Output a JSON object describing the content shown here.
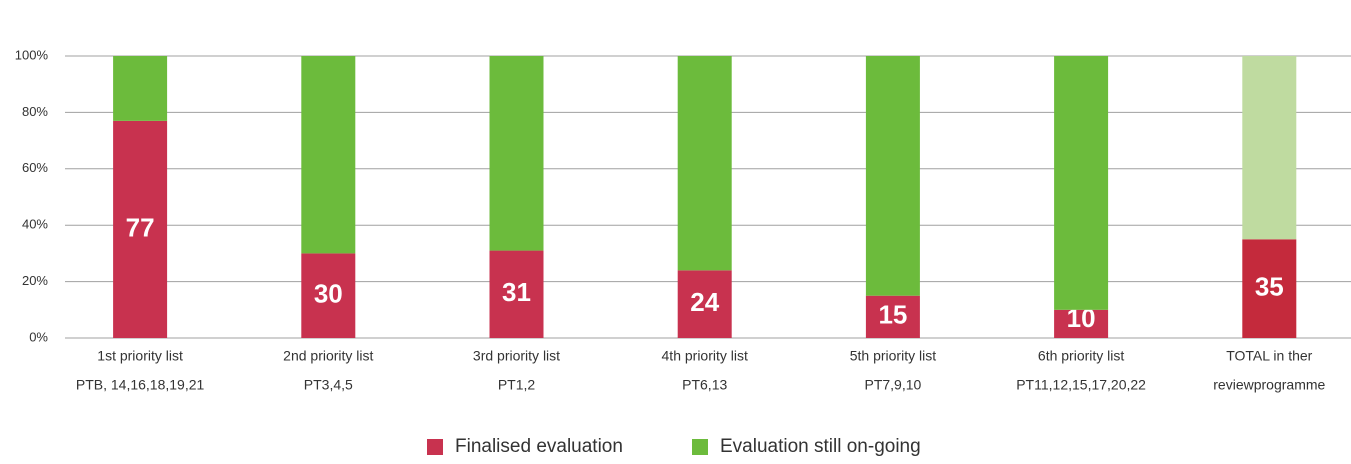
{
  "chart_data": {
    "type": "stacked_bar",
    "categories": [
      [
        "1st priority list",
        "PTB, 14,16,18,19,21"
      ],
      [
        "2nd priority list",
        "PT3,4,5"
      ],
      [
        "3rd priority list",
        "PT1,2"
      ],
      [
        "4th priority list",
        "PT6,13"
      ],
      [
        "5th priority list",
        "PT7,9,10"
      ],
      [
        "6th priority list",
        "PT11,12,15,17,20,22"
      ],
      [
        "TOTAL in ther",
        "reviewprogramme"
      ]
    ],
    "series": [
      {
        "name": "Finalised evaluation",
        "color": "#c8324f",
        "colors": [
          "#c8324f",
          "#c8324f",
          "#c8324f",
          "#c8324f",
          "#c8324f",
          "#c8324f",
          "#c42a3c"
        ],
        "values": [
          77,
          30,
          31,
          24,
          15,
          10,
          35
        ]
      },
      {
        "name": "Evaluation still on-going",
        "color": "#6cbb3c",
        "colors": [
          "#6cbb3c",
          "#6cbb3c",
          "#6cbb3c",
          "#6cbb3c",
          "#6cbb3c",
          "#6cbb3c",
          "#bfdba0"
        ],
        "values": [
          23,
          70,
          69,
          76,
          85,
          90,
          65
        ]
      }
    ],
    "ylim": [
      0,
      100
    ],
    "yticks": [
      {
        "value": 0,
        "label": "0%"
      },
      {
        "value": 20,
        "label": "20%"
      },
      {
        "value": 40,
        "label": "40%"
      },
      {
        "value": 60,
        "label": "60%"
      },
      {
        "value": 80,
        "label": "80%"
      },
      {
        "value": 100,
        "label": "100%"
      }
    ],
    "grid": true,
    "legend": "bottom"
  }
}
